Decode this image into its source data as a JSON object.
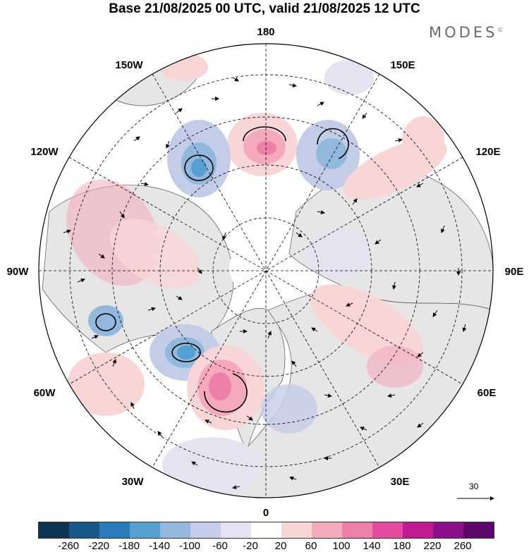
{
  "header": {
    "title": "Base 21/08/2025 00 UTC, valid 21/08/2025 12 UTC",
    "brand": "MODES",
    "brand_mark": "©"
  },
  "map": {
    "projection": "north polar stereographic",
    "longitude_labels": {
      "top": "180",
      "bottom": "0",
      "left": "90W",
      "right": "90E",
      "upper_left_1": "150W",
      "upper_left_2": "120W",
      "upper_right_1": "150E",
      "upper_right_2": "120E",
      "lower_left_1": "60W",
      "lower_left_2": "30W",
      "lower_right_1": "60E",
      "lower_right_2": "30E"
    },
    "vector_scale_label": "30"
  },
  "colorbar": {
    "colors": [
      "#0e3453",
      "#17588a",
      "#2a7bbd",
      "#559fd2",
      "#93b8de",
      "#c4cde8",
      "#e6e2f1",
      "#ffffff",
      "#f9d6d6",
      "#f4aabb",
      "#ee7fa8",
      "#e54a9e",
      "#c31a90",
      "#8d0d8a",
      "#5c076c"
    ],
    "ticks": [
      "-260",
      "-220",
      "-180",
      "-140",
      "-100",
      "-60",
      "-20",
      "20",
      "60",
      "100",
      "140",
      "180",
      "220",
      "260"
    ]
  }
}
